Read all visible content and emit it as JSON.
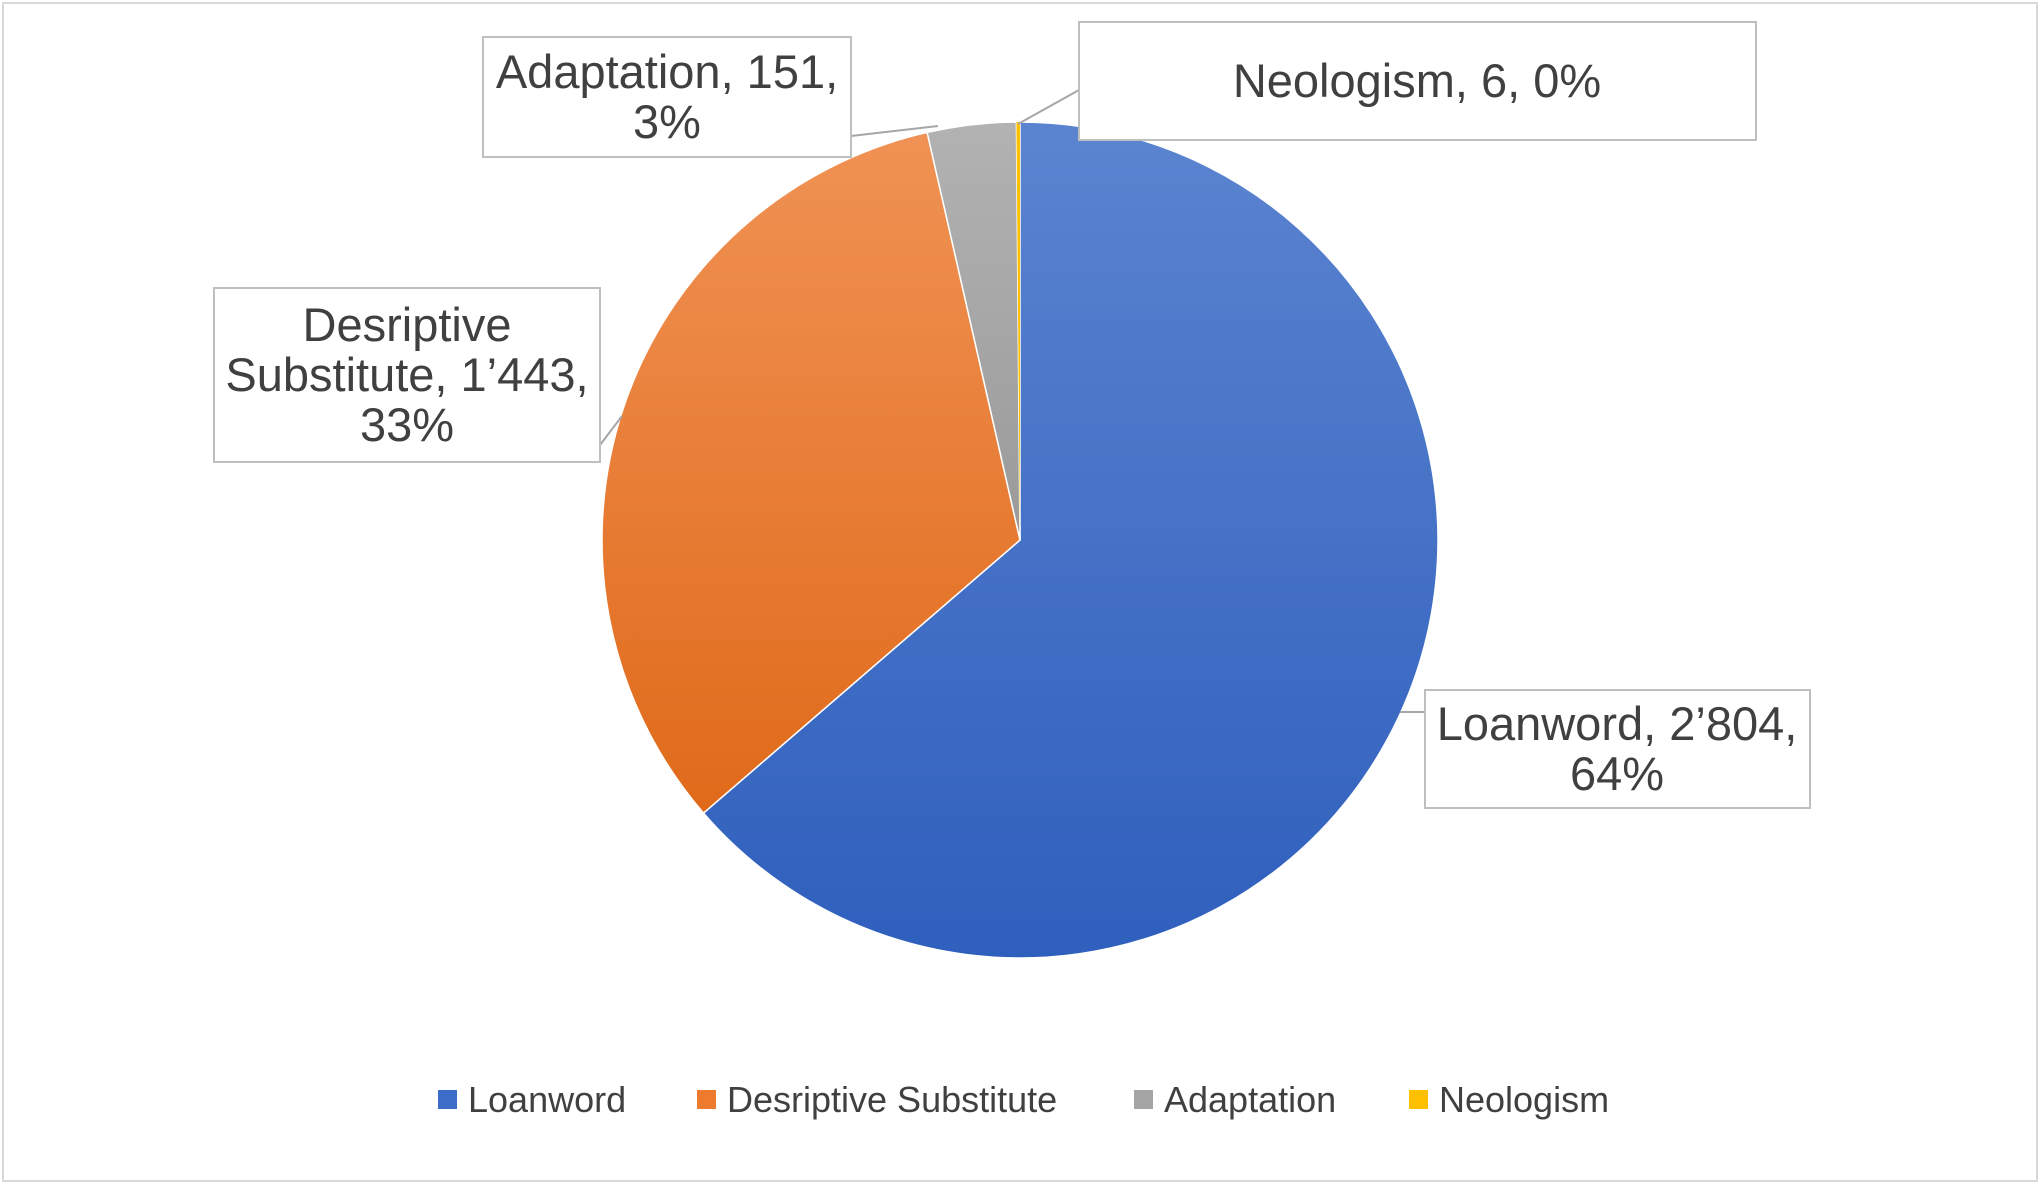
{
  "chart_data": {
    "type": "pie",
    "title": "",
    "slices": [
      {
        "name": "Loanword",
        "value": 2804,
        "value_label": "2’804",
        "percent_label": "64%",
        "color": "#3b6cc8",
        "color_light": "#5b84d0",
        "color_dark": "#2f5fbd"
      },
      {
        "name": "Desriptive Substitute",
        "value": 1443,
        "value_label": "1’443",
        "percent_label": "33%",
        "color": "#ee7a2e",
        "color_light": "#f09254",
        "color_dark": "#e06a1a"
      },
      {
        "name": "Adaptation",
        "value": 151,
        "value_label": "151",
        "percent_label": "3%",
        "color": "#a5a5a5",
        "color_light": "#b2b2b2",
        "color_dark": "#9a9a9a"
      },
      {
        "name": "Neologism",
        "value": 6,
        "value_label": "6",
        "percent_label": "0%",
        "color": "#ffc000",
        "color_light": "#ffc000",
        "color_dark": "#ffc000"
      }
    ],
    "data_labels": [
      {
        "lines": [
          "Loanword, 2’804,",
          "64%"
        ]
      },
      {
        "lines": [
          "Desriptive",
          "Substitute, 1’443,",
          "33%"
        ]
      },
      {
        "lines": [
          "Adaptation, 151,",
          "3%"
        ]
      },
      {
        "lines": [
          "Neologism, 6, 0%"
        ]
      }
    ],
    "legend": {
      "position": "bottom",
      "items": [
        "Loanword",
        "Desriptive Substitute",
        "Adaptation",
        "Neologism"
      ]
    }
  }
}
